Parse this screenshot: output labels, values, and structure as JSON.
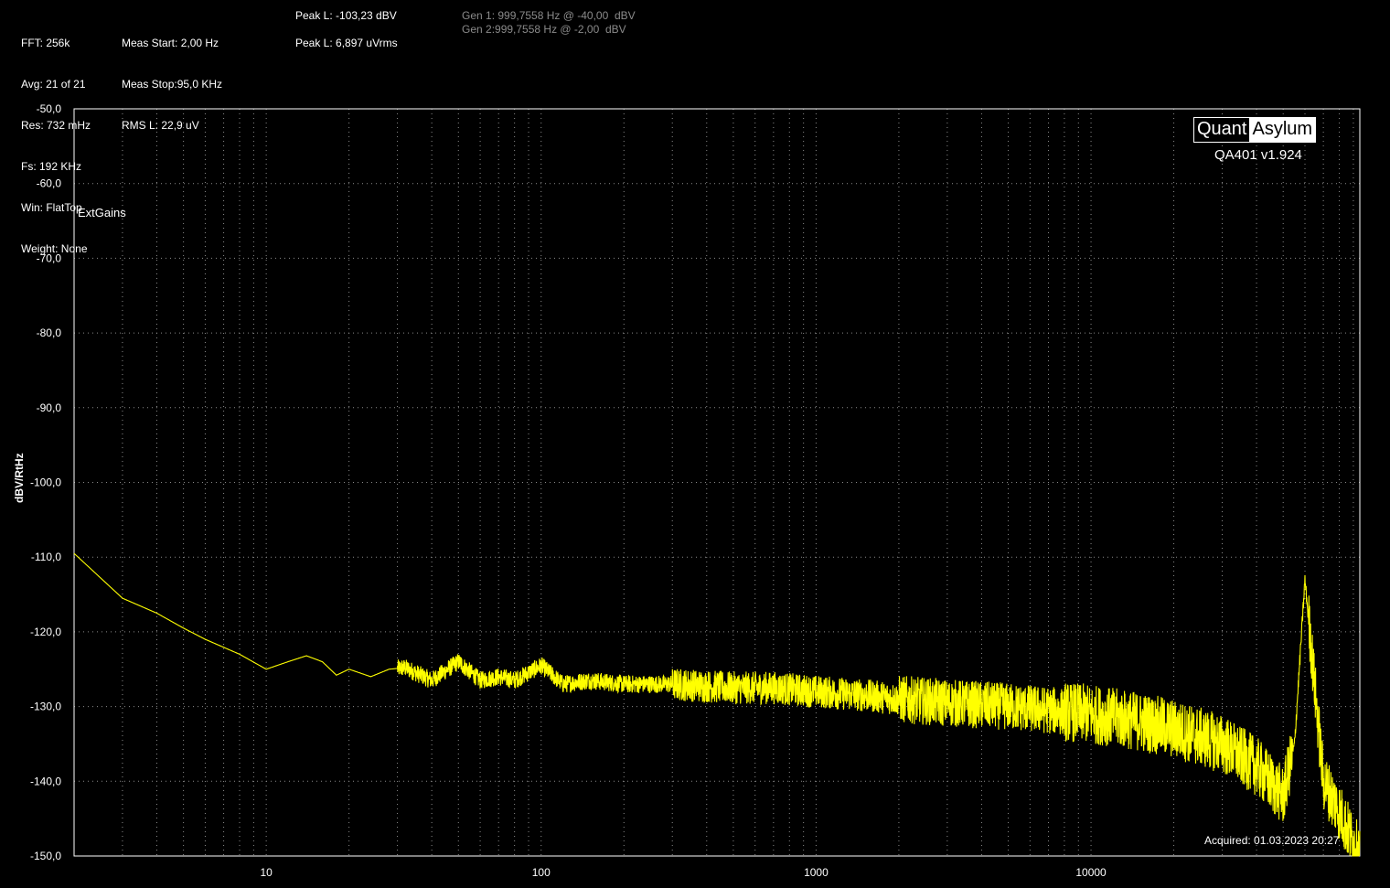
{
  "header": {
    "col1": [
      "FFT: 256k",
      "Avg: 21 of 21",
      "Res: 732 mHz",
      "Fs: 192 KHz",
      "Win: FlatTop",
      "Weight: None"
    ],
    "col2": [
      "Meas Start: 2,00 Hz",
      "Meas Stop:95,0 KHz",
      "RMS L: 22,9 uV"
    ],
    "peak1": "Peak L: -103,23 dBV",
    "peak2": "Peak L: 6,897 uVrms",
    "gen1": "Gen 1: 999,7558 Hz @ -40,00  dBV",
    "gen2": "Gen 2:999,7558 Hz @ -2,00  dBV"
  },
  "branding": {
    "logo_left": "Quant",
    "logo_right": "Asylum",
    "version": "QA401 v1.924"
  },
  "legend_label": "ExtGains",
  "acquired": "Acquired: 01.03.2023 20:27",
  "colors": {
    "trace": "#ffff00",
    "grid": "#8a8a8a",
    "background": "#000000"
  },
  "chart_data": {
    "type": "line",
    "xscale": "log",
    "xlim": [
      2,
      95000
    ],
    "ylim": [
      -150,
      -50
    ],
    "ylabel": "dBV/RtHz",
    "xlabel": "",
    "grid": true,
    "x_ticks": [
      "10",
      "100",
      "1000",
      "10000"
    ],
    "y_ticks": [
      "-50,0",
      "-60,0",
      "-70,0",
      "-80,0",
      "-90,0",
      "-100,0",
      "-110,0",
      "-120,0",
      "-130,0",
      "-140,0",
      "-150,0"
    ],
    "series": [
      {
        "x": [
          2,
          3,
          4,
          5,
          6,
          8,
          10,
          12,
          14,
          16,
          18,
          20,
          24,
          28,
          32,
          40,
          50,
          60,
          70,
          80,
          100,
          120,
          150,
          200,
          300,
          500,
          700,
          1000,
          1500,
          2000,
          3000,
          5000,
          7000,
          10000,
          15000,
          20000,
          30000,
          40000,
          50000,
          55000,
          60000,
          70000,
          80000,
          95000
        ],
        "y": [
          -109.5,
          -115.5,
          -117.5,
          -119.5,
          -121,
          -123,
          -125,
          -124,
          -123.2,
          -124,
          -125.8,
          -125,
          -126,
          -125,
          -124.8,
          -126.5,
          -124,
          -126.5,
          -126,
          -126.5,
          -124.5,
          -127,
          -126.5,
          -127,
          -127,
          -127.5,
          -127.5,
          -128,
          -128.5,
          -129,
          -129.5,
          -130,
          -130.5,
          -131,
          -132,
          -133,
          -135,
          -138,
          -142,
          -135,
          -113,
          -140,
          -144,
          -150
        ]
      }
    ]
  }
}
